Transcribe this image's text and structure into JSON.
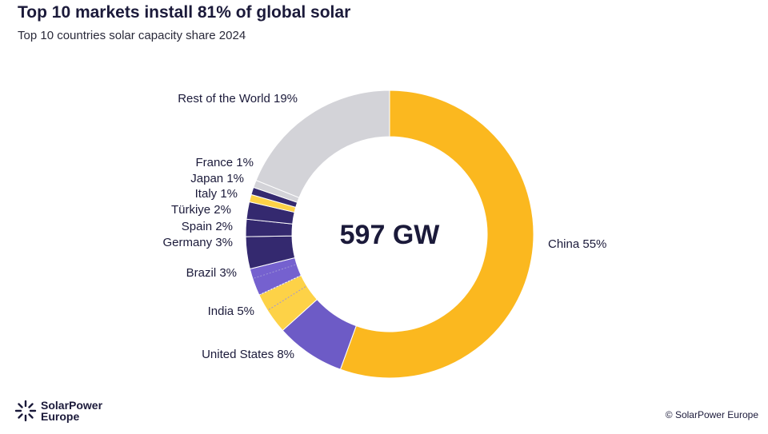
{
  "header": {
    "title": "Top 10 markets install 81% of global solar",
    "subtitle": "Top 10 countries solar capacity share 2024"
  },
  "chart_data": {
    "type": "pie",
    "variant": "donut",
    "title": "Top 10 markets install 81% of global solar",
    "subtitle": "Top 10 countries solar capacity share 2024",
    "center_label": "597 GW",
    "unit": "%",
    "categories": [
      "China",
      "United States",
      "India",
      "Brazil",
      "Germany",
      "Spain",
      "Türkiye",
      "Italy",
      "Japan",
      "France",
      "Rest of the World"
    ],
    "values": [
      55,
      8,
      5,
      3,
      3,
      2,
      2,
      1,
      1,
      1,
      19
    ],
    "labels": [
      "China 55%",
      "United States 8%",
      "India 5%",
      "Brazil 3%",
      "Germany 3%",
      "Spain 2%",
      "Türkiye 2%",
      "Italy 1%",
      "Japan 1%",
      "France 1%",
      "Rest of the World 19%"
    ],
    "colors": [
      "#fbb81f",
      "#6d5bc6",
      "#fdd247",
      "#7561cf",
      "#34296f",
      "#34296f",
      "#34296f",
      "#fdd247",
      "#34296f",
      "#d3d3d8",
      "#d3d3d8"
    ],
    "legend": "none"
  },
  "footer": {
    "brand_line1": "SolarPower",
    "brand_line2": "Europe",
    "copyright": "© SolarPower Europe"
  },
  "colors": {
    "title_text": "#1b1a3a",
    "background": "#ffffff"
  }
}
